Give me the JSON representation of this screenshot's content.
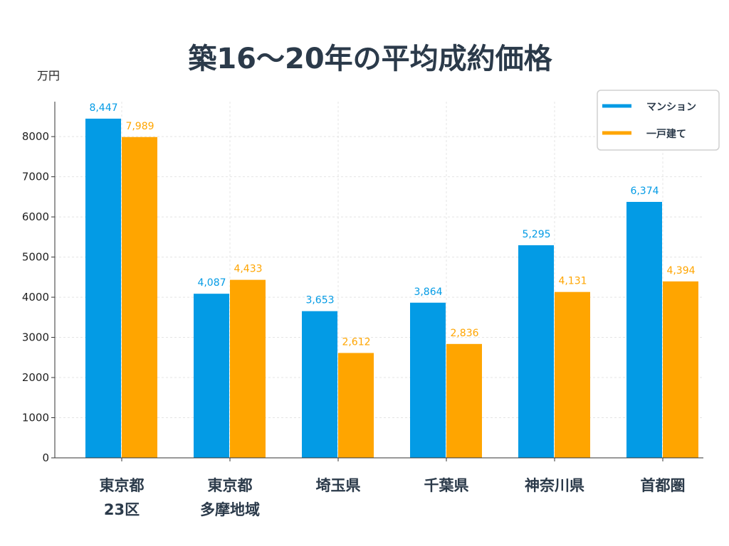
{
  "chart_data": {
    "type": "bar",
    "title": "築16〜20年の平均成約価格",
    "ylabel": "万円",
    "xlabel": "",
    "categories": [
      [
        "東京都",
        "23区"
      ],
      [
        "東京都",
        "多摩地域"
      ],
      [
        "埼玉県"
      ],
      [
        "千葉県"
      ],
      [
        "神奈川県"
      ],
      [
        "首都圏"
      ]
    ],
    "series": [
      {
        "name": "マンション",
        "color": "#039be5",
        "values": [
          8447,
          4087,
          3653,
          3864,
          5295,
          6374
        ],
        "labels": [
          "8,447",
          "4,087",
          "3,653",
          "3,864",
          "5,295",
          "6,374"
        ]
      },
      {
        "name": "一戸建て",
        "color": "#ffa500",
        "values": [
          7989,
          4433,
          2612,
          2836,
          4131,
          4394
        ],
        "labels": [
          "7,989",
          "4,433",
          "2,612",
          "2,836",
          "4,131",
          "4,394"
        ]
      }
    ],
    "ylim": [
      0,
      8870
    ],
    "yticks": [
      0,
      1000,
      2000,
      3000,
      4000,
      5000,
      6000,
      7000,
      8000
    ],
    "grid": true,
    "legend": "top-right"
  }
}
